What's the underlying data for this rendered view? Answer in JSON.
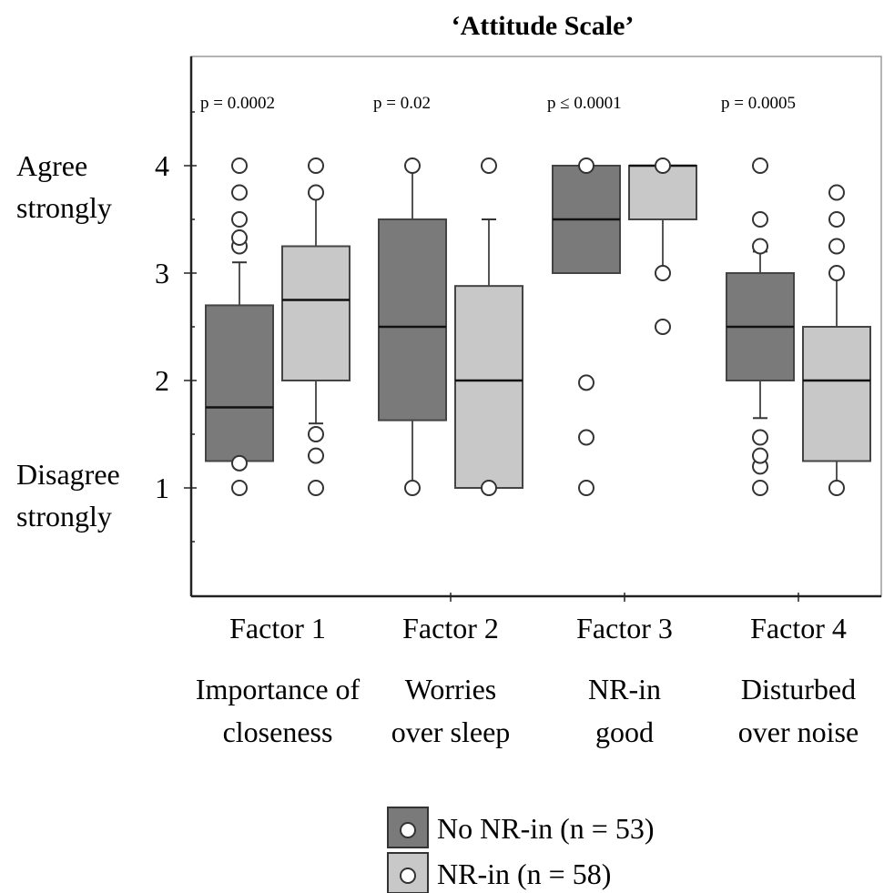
{
  "chart_data": {
    "type": "box",
    "title": "‘Attitude Scale’",
    "ylim": [
      0,
      5
    ],
    "yticks": [
      {
        "value": 1,
        "label": "1"
      },
      {
        "value": 2,
        "label": "2"
      },
      {
        "value": 3,
        "label": "3"
      },
      {
        "value": 4,
        "label": "4"
      }
    ],
    "y_anchor_labels": {
      "high": {
        "lines": [
          "Agree",
          "strongly"
        ]
      },
      "low": {
        "lines": [
          "Disagree",
          "strongly"
        ]
      }
    },
    "categories": [
      {
        "factor": "Factor 1",
        "lines": [
          "Importance of",
          "closeness"
        ],
        "p": "p = 0.0002"
      },
      {
        "factor": "Factor 2",
        "lines": [
          "Worries",
          "over sleep"
        ],
        "p": "p = 0.02"
      },
      {
        "factor": "Factor 3",
        "lines": [
          "NR-in",
          "good"
        ],
        "p": "p ≤ 0.0001"
      },
      {
        "factor": "Factor 4",
        "lines": [
          "Disturbed",
          "over noise"
        ],
        "p": "p = 0.0005"
      }
    ],
    "series": [
      {
        "name": "No NR-in (n = 53)",
        "color": "#7a7a7a",
        "boxes": [
          {
            "whisker_low": 1.25,
            "q1": 1.25,
            "median": 1.75,
            "q3": 2.7,
            "whisker_high": 3.1,
            "outliers": [
              1.0,
              1.23,
              3.25,
              3.33,
              3.5,
              3.75,
              4.0
            ]
          },
          {
            "whisker_low": 1.0,
            "q1": 1.63,
            "median": 2.5,
            "q3": 3.5,
            "whisker_high": 4.0,
            "outliers": [
              1.0,
              4.0
            ]
          },
          {
            "whisker_low": 3.0,
            "q1": 3.0,
            "median": 3.5,
            "q3": 4.0,
            "whisker_high": 4.0,
            "outliers": [
              1.0,
              1.47,
              1.98,
              4.0
            ]
          },
          {
            "whisker_low": 1.65,
            "q1": 2.0,
            "median": 2.5,
            "q3": 3.0,
            "whisker_high": 3.2,
            "outliers": [
              1.0,
              1.2,
              1.3,
              1.47,
              3.25,
              3.5,
              4.0
            ]
          }
        ]
      },
      {
        "name": "NR-in (n = 58)",
        "color": "#c8c8c8",
        "boxes": [
          {
            "whisker_low": 1.6,
            "q1": 2.0,
            "median": 2.75,
            "q3": 3.25,
            "whisker_high": 3.78,
            "outliers": [
              1.0,
              1.3,
              1.5,
              3.75,
              4.0
            ]
          },
          {
            "whisker_low": 1.0,
            "q1": 1.0,
            "median": 2.0,
            "q3": 2.88,
            "whisker_high": 3.5,
            "outliers": [
              1.0,
              4.0
            ]
          },
          {
            "whisker_low": 3.0,
            "q1": 3.5,
            "median": 4.0,
            "q3": 4.0,
            "whisker_high": 4.0,
            "outliers": [
              2.5,
              3.0,
              4.0
            ]
          },
          {
            "whisker_low": 1.0,
            "q1": 1.25,
            "median": 2.0,
            "q3": 2.5,
            "whisker_high": 2.98,
            "outliers": [
              1.0,
              3.0,
              3.25,
              3.5,
              3.75
            ]
          }
        ]
      }
    ],
    "legend_position": "bottom-center"
  }
}
